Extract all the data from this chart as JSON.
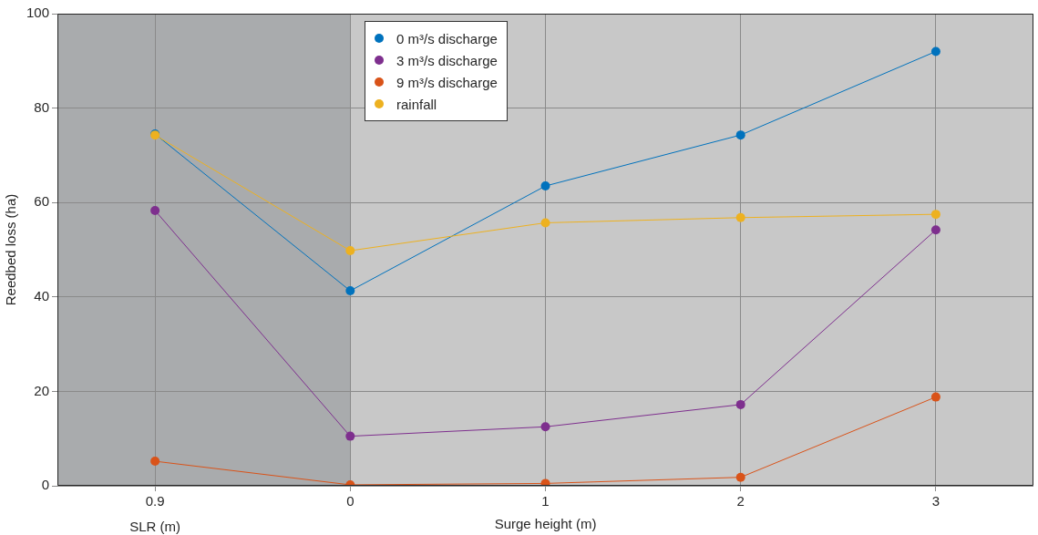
{
  "chart_data": {
    "type": "line",
    "xlabel": "Surge height (m)",
    "ylabel": "Reedbed loss (ha)",
    "annotations": [
      "SLR (m)"
    ],
    "categories": [
      "0.9",
      "0",
      "1",
      "2",
      "3"
    ],
    "ylim": [
      0,
      100
    ],
    "yticks": [
      0,
      20,
      40,
      60,
      80,
      100
    ],
    "bands": [
      {
        "axis": "x",
        "from": "0.9",
        "to": "0",
        "color": "#a9abad"
      },
      {
        "axis": "x",
        "from": "0",
        "to": "3",
        "color": "#c8c8c8"
      }
    ],
    "series": [
      {
        "name": "0 m³/s discharge",
        "color": "#0072bd",
        "values": [
          74.5,
          41.3,
          63.5,
          74.3,
          92
        ]
      },
      {
        "name": "3 m³/s discharge",
        "color": "#7e2f8e",
        "values": [
          58.3,
          10.5,
          12.5,
          17.2,
          54.2
        ]
      },
      {
        "name": "9 m³/s discharge",
        "color": "#d95319",
        "values": [
          5.2,
          0.2,
          0.5,
          1.8,
          18.8
        ]
      },
      {
        "name": "rainfall",
        "color": "#edb120",
        "values": [
          74.3,
          49.8,
          55.7,
          56.8,
          57.5
        ]
      }
    ],
    "grid": true,
    "legend": "top",
    "marker": "circle",
    "line_style": "solid"
  }
}
